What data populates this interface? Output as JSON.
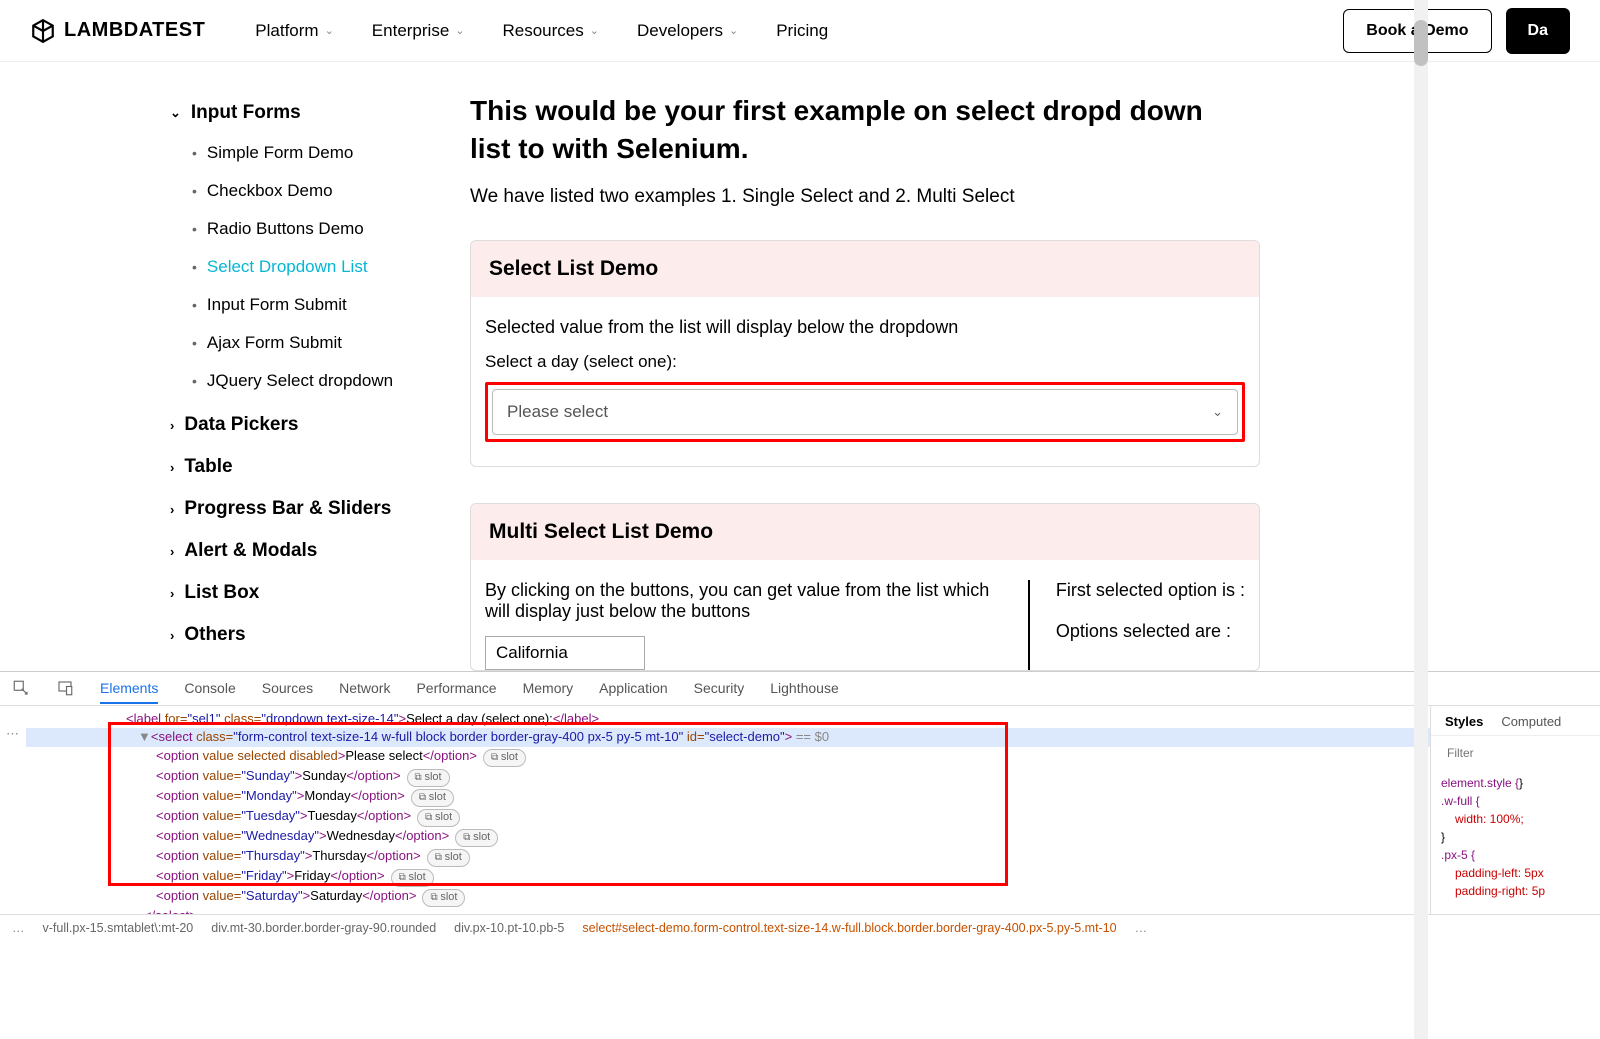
{
  "header": {
    "brand": "LAMBDATEST",
    "nav": [
      "Platform",
      "Enterprise",
      "Resources",
      "Developers",
      "Pricing"
    ],
    "cta_outline": "Book a Demo",
    "cta_solid": "Da"
  },
  "sidebar": {
    "open_group": "Input Forms",
    "items": [
      {
        "label": "Simple Form Demo"
      },
      {
        "label": "Checkbox Demo"
      },
      {
        "label": "Radio Buttons Demo"
      },
      {
        "label": "Select Dropdown List",
        "active": true
      },
      {
        "label": "Input Form Submit"
      },
      {
        "label": "Ajax Form Submit"
      },
      {
        "label": "JQuery Select dropdown"
      }
    ],
    "closed_groups": [
      "Data Pickers",
      "Table",
      "Progress Bar & Sliders",
      "Alert & Modals",
      "List Box",
      "Others"
    ]
  },
  "main": {
    "title": "This would be your first example on select dropd down list to with Selenium.",
    "subtitle": "We have listed two examples 1. Single Select and 2. Multi Select",
    "card1": {
      "head": "Select List Demo",
      "desc": "Selected value from the list will display below the dropdown",
      "label": "Select a day (select one):",
      "placeholder": "Please select"
    },
    "card2": {
      "head": "Multi Select List Demo",
      "desc": "By clicking on the buttons, you can get value from the list which will display just below the buttons",
      "option": "California",
      "right1": "First selected option is :",
      "right2": "Options selected are :"
    }
  },
  "devtools": {
    "tabs": [
      "Elements",
      "Console",
      "Sources",
      "Network",
      "Performance",
      "Memory",
      "Application",
      "Security",
      "Lighthouse"
    ],
    "label_line": {
      "for": "sel1",
      "class": "dropdown text-size-14",
      "text": "Select a day (select one):"
    },
    "select_line": {
      "class": "form-control text-size-14 w-full block border border-gray-400 px-5 py-5 mt-10",
      "id": "select-demo"
    },
    "options": [
      {
        "attrs": "value selected disabled",
        "text": "Please select"
      },
      {
        "attrs": "value=\"Sunday\"",
        "text": "Sunday"
      },
      {
        "attrs": "value=\"Monday\"",
        "text": "Monday"
      },
      {
        "attrs": "value=\"Tuesday\"",
        "text": "Tuesday"
      },
      {
        "attrs": "value=\"Wednesday\"",
        "text": "Wednesday"
      },
      {
        "attrs": "value=\"Thursday\"",
        "text": "Thursday"
      },
      {
        "attrs": "value=\"Friday\"",
        "text": "Friday"
      },
      {
        "attrs": "value=\"Saturday\"",
        "text": "Saturday"
      }
    ],
    "side_tabs": [
      "Styles",
      "Computed"
    ],
    "filter_placeholder": "Filter",
    "rules": [
      {
        "sel": "element.style {",
        "props": [],
        "close": "}"
      },
      {
        "sel": ".w-full {",
        "props": [
          "width: 100%;"
        ],
        "close": "}"
      },
      {
        "sel": ".px-5 {",
        "props": [
          "padding-left: 5px",
          "padding-right: 5p"
        ],
        "close": ""
      }
    ],
    "crumbs": [
      "v-full.px-15.smtablet\\:mt-20",
      "div.mt-30.border.border-gray-90.rounded",
      "div.px-10.pt-10.pb-5",
      "select#select-demo.form-control.text-size-14.w-full.block.border.border-gray-400.px-5.py-5.mt-10"
    ]
  }
}
